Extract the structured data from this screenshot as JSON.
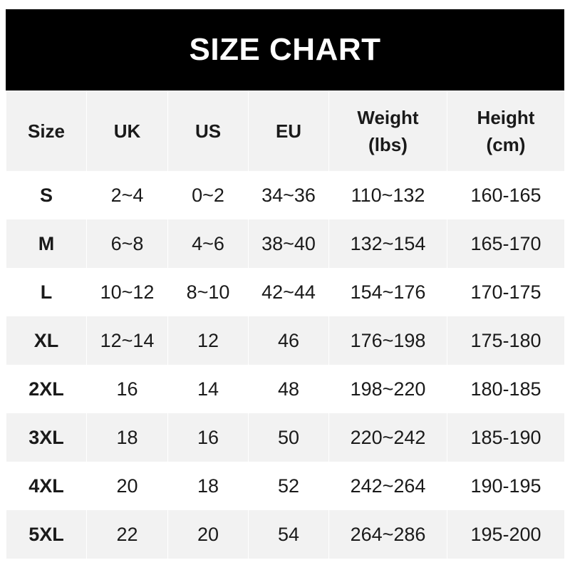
{
  "title": "SIZE CHART",
  "headers": [
    {
      "line1": "Size",
      "line2": ""
    },
    {
      "line1": "UK",
      "line2": ""
    },
    {
      "line1": "US",
      "line2": ""
    },
    {
      "line1": "EU",
      "line2": ""
    },
    {
      "line1": "Weight",
      "line2": "(lbs)"
    },
    {
      "line1": "Height",
      "line2": "(cm)"
    }
  ],
  "rows": [
    [
      "S",
      "2~4",
      "0~2",
      "34~36",
      "110~132",
      "160-165"
    ],
    [
      "M",
      "6~8",
      "4~6",
      "38~40",
      "132~154",
      "165-170"
    ],
    [
      "L",
      "10~12",
      "8~10",
      "42~44",
      "154~176",
      "170-175"
    ],
    [
      "XL",
      "12~14",
      "12",
      "46",
      "176~198",
      "175-180"
    ],
    [
      "2XL",
      "16",
      "14",
      "48",
      "198~220",
      "180-185"
    ],
    [
      "3XL",
      "18",
      "16",
      "50",
      "220~242",
      "185-190"
    ],
    [
      "4XL",
      "20",
      "18",
      "52",
      "242~264",
      "190-195"
    ],
    [
      "5XL",
      "22",
      "20",
      "54",
      "264~286",
      "195-200"
    ]
  ],
  "colors": {
    "title_bg": "#000000",
    "stripe": "#f2f2f2"
  }
}
